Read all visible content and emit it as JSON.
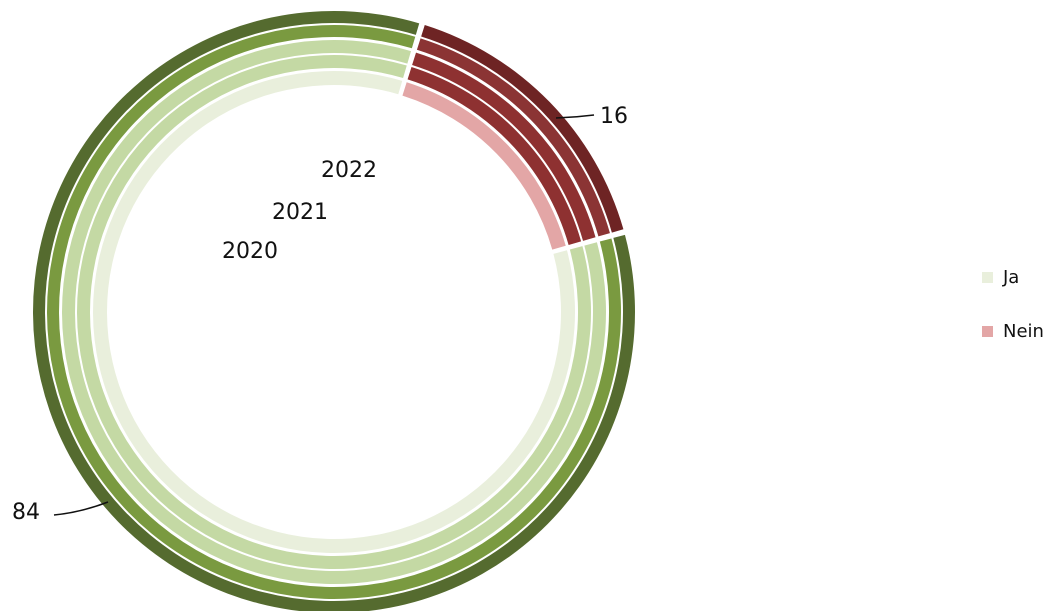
{
  "chart_data": {
    "type": "pie",
    "legend": {
      "position": "right"
    },
    "series": [
      {
        "name": "",
        "values": [
          84,
          16
        ],
        "colors": [
          "#556B2F",
          "#6E2424"
        ],
        "label": ""
      },
      {
        "name": "",
        "values": [
          84,
          16
        ],
        "colors": [
          "#7A9A40",
          "#8B3434"
        ],
        "label": ""
      },
      {
        "name": "",
        "values": [
          84,
          16
        ],
        "colors": [
          "#C4D9A4",
          "#8E3131"
        ],
        "label": "2022"
      },
      {
        "name": "",
        "values": [
          84,
          16
        ],
        "colors": [
          "#C4D9A4",
          "#8E3131"
        ],
        "label": "2021"
      },
      {
        "name": "",
        "values": [
          84,
          16
        ],
        "colors": [
          "#E9EFDC",
          "#E3A6A6"
        ],
        "label": "2020"
      }
    ],
    "categories": [
      "Ja",
      "Nein"
    ],
    "data_labels": {
      "ja": "84",
      "nein": "16"
    }
  },
  "legend": {
    "items": [
      {
        "label": "Ja",
        "color": "#E9EFDC"
      },
      {
        "label": "Nein",
        "color": "#E3A6A6"
      }
    ]
  }
}
